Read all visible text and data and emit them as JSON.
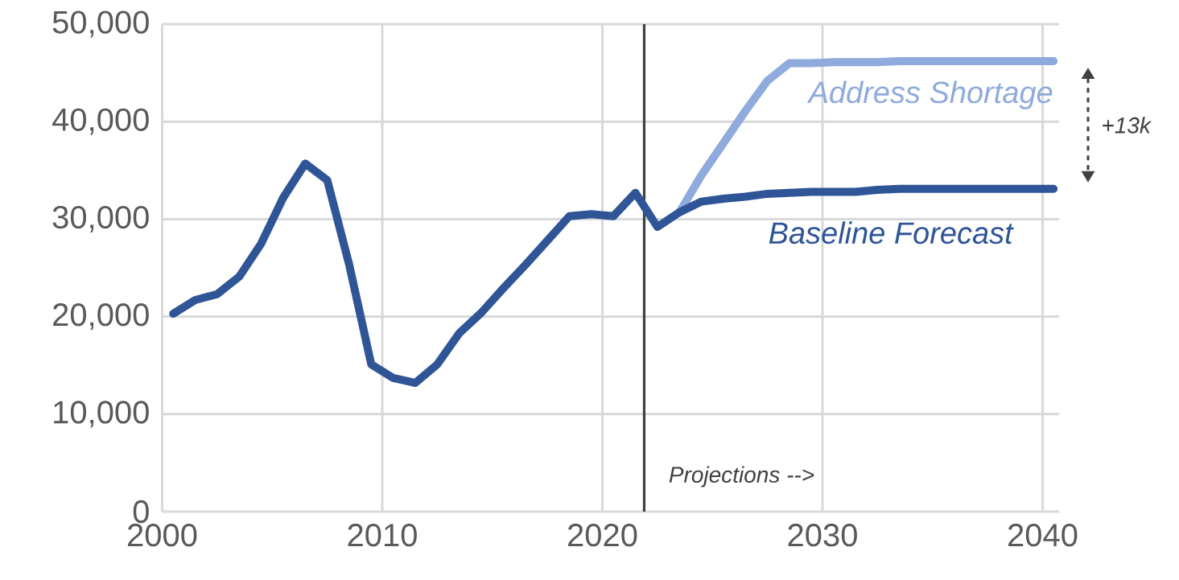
{
  "chart_data": {
    "type": "line",
    "xlim": [
      2000,
      2040.75
    ],
    "ylim": [
      0,
      50000
    ],
    "xticks": [
      2000,
      2010,
      2020,
      2030,
      2040
    ],
    "yticks": [
      0,
      {
        "value": 10000,
        "label": "10,000"
      },
      {
        "value": 20000,
        "label": "20,000"
      },
      {
        "value": 30000,
        "label": "30,000"
      },
      {
        "value": 40000,
        "label": "40,000"
      },
      {
        "value": 50000,
        "label": "50,000"
      }
    ],
    "grid": true,
    "line_style": "solid",
    "marker": "none",
    "series": [
      {
        "name": "Address Shortage",
        "color": "#8faadc",
        "x": [
          2023.5,
          2024.5,
          2025.5,
          2026.5,
          2027.5,
          2028.5,
          2029.5,
          2030.5,
          2031.5,
          2032.5,
          2033.5,
          2034.5,
          2035.5,
          2036.5,
          2037.5,
          2038.5,
          2039.5,
          2040.5
        ],
        "values": [
          30700,
          34500,
          37800,
          41100,
          44200,
          46000,
          46000,
          46100,
          46100,
          46100,
          46200,
          46200,
          46200,
          46200,
          46200,
          46200,
          46200,
          46200
        ]
      },
      {
        "name": "Baseline Forecast",
        "color": "#2f5597",
        "x": [
          2000.5,
          2001.5,
          2002.5,
          2003.5,
          2004.5,
          2005.5,
          2006.5,
          2007.5,
          2008.5,
          2009.5,
          2010.5,
          2011.5,
          2012.5,
          2013.5,
          2014.5,
          2015.5,
          2016.5,
          2017.5,
          2018.5,
          2019.5,
          2020.5,
          2021.5,
          2022.5,
          2023.5,
          2024.5,
          2025.5,
          2026.5,
          2027.5,
          2028.5,
          2029.5,
          2030.5,
          2031.5,
          2032.5,
          2033.5,
          2034.5,
          2035.5,
          2036.5,
          2037.5,
          2038.5,
          2039.5,
          2040.5
        ],
        "values": [
          20300,
          21700,
          22300,
          24100,
          27500,
          32200,
          35700,
          34000,
          25300,
          15100,
          13700,
          13200,
          15100,
          18300,
          20400,
          22900,
          25300,
          27800,
          30300,
          30500,
          30300,
          32700,
          29200,
          30700,
          31800,
          32100,
          32300,
          32600,
          32700,
          32800,
          32800,
          32800,
          33000,
          33100,
          33100,
          33100,
          33100,
          33100,
          33100,
          33100,
          33100
        ]
      }
    ],
    "ref_lines": [
      {
        "axis": "x",
        "value": 2021.9,
        "color": "#404040"
      }
    ],
    "annotations": [
      "Projections -->",
      "+13k"
    ]
  }
}
